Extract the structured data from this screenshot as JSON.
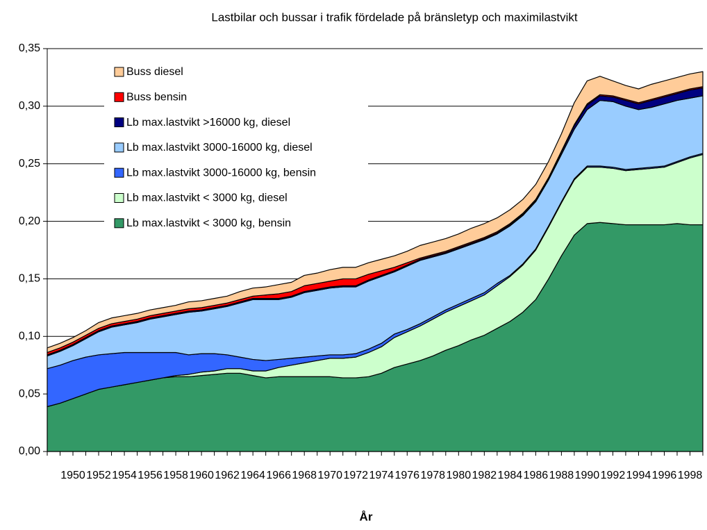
{
  "chart_data": {
    "type": "stacked-area",
    "title": "Lastbilar och bussar i trafik fördelade på bränsletyp och maximilastvikt",
    "x_label": "År",
    "categories": [
      null,
      null,
      "1950",
      null,
      "1952",
      null,
      "1954",
      null,
      "1956",
      null,
      "1958",
      null,
      "1960",
      null,
      "1962",
      null,
      "1964",
      null,
      "1966",
      null,
      "1968",
      null,
      "1970",
      null,
      "1972",
      null,
      "1974",
      null,
      "1976",
      null,
      "1978",
      null,
      "1980",
      null,
      "1982",
      null,
      "1984",
      null,
      "1986",
      null,
      "1988",
      null,
      "1990",
      null,
      "1992",
      null,
      "1994",
      null,
      "1996",
      null,
      "1998",
      null
    ],
    "ylim": [
      0,
      0.35
    ],
    "yticks": [
      {
        "value": 0,
        "label": "0,00"
      },
      {
        "value": 0.05,
        "label": "0,05"
      },
      {
        "value": 0.1,
        "label": "0,10"
      },
      {
        "value": 0.15,
        "label": "0,15"
      },
      {
        "value": 0.2,
        "label": "0,20"
      },
      {
        "value": 0.25,
        "label": "0,25"
      },
      {
        "value": 0.3,
        "label": "0,30"
      },
      {
        "value": 0.35,
        "label": "0,35"
      }
    ],
    "grid": true,
    "legend": "upper-left",
    "series": [
      {
        "name": "Lb max.lastvikt < 3000 kg, bensin",
        "color": "#339966",
        "values": [
          0.039,
          0.042,
          0.046,
          0.05,
          0.054,
          0.056,
          0.058,
          0.06,
          0.062,
          0.064,
          0.065,
          0.065,
          0.066,
          0.067,
          0.068,
          0.068,
          0.066,
          0.064,
          0.065,
          0.065,
          0.065,
          0.065,
          0.065,
          0.064,
          0.064,
          0.065,
          0.068,
          0.073,
          0.076,
          0.079,
          0.083,
          0.088,
          0.092,
          0.097,
          0.101,
          0.107,
          0.113,
          0.121,
          0.132,
          0.15,
          0.17,
          0.188,
          0.198,
          0.199,
          0.198,
          0.197,
          0.197,
          0.197,
          0.197,
          0.198,
          0.197,
          0.197
        ]
      },
      {
        "name": "Lb max.lastvikt < 3000 kg, diesel",
        "color": "#ccffcc",
        "values": [
          0,
          0,
          0,
          0,
          0,
          0,
          0,
          0,
          0,
          0,
          0.001,
          0.002,
          0.003,
          0.003,
          0.004,
          0.004,
          0.004,
          0.006,
          0.008,
          0.01,
          0.012,
          0.014,
          0.016,
          0.017,
          0.018,
          0.021,
          0.023,
          0.026,
          0.028,
          0.03,
          0.032,
          0.033,
          0.034,
          0.034,
          0.035,
          0.037,
          0.039,
          0.041,
          0.043,
          0.045,
          0.046,
          0.048,
          0.049,
          0.048,
          0.048,
          0.047,
          0.048,
          0.049,
          0.05,
          0.053,
          0.058,
          0.061
        ]
      },
      {
        "name": "Lb max.lastvikt 3000-16000 kg, bensin",
        "color": "#3366ff",
        "values": [
          0.033,
          0.033,
          0.033,
          0.032,
          0.03,
          0.029,
          0.028,
          0.026,
          0.024,
          0.022,
          0.02,
          0.017,
          0.016,
          0.015,
          0.012,
          0.01,
          0.01,
          0.009,
          0.007,
          0.006,
          0.005,
          0.004,
          0.003,
          0.003,
          0.003,
          0.003,
          0.003,
          0.003,
          0.002,
          0.002,
          0.002,
          0.002,
          0.002,
          0.002,
          0.002,
          0.002,
          0.001,
          0.001,
          0.001,
          0.001,
          0.001,
          0.001,
          0.001,
          0.001,
          0.001,
          0.001,
          0.001,
          0.001,
          0.001,
          0.001,
          0.001,
          0.001
        ]
      },
      {
        "name": "Lb max.lastvikt 3000-16000 kg, diesel",
        "color": "#99ccff",
        "values": [
          0.011,
          0.012,
          0.013,
          0.016,
          0.02,
          0.023,
          0.024,
          0.026,
          0.029,
          0.031,
          0.033,
          0.037,
          0.037,
          0.039,
          0.042,
          0.047,
          0.052,
          0.053,
          0.052,
          0.053,
          0.056,
          0.057,
          0.058,
          0.059,
          0.058,
          0.059,
          0.058,
          0.054,
          0.055,
          0.055,
          0.052,
          0.049,
          0.048,
          0.047,
          0.046,
          0.043,
          0.043,
          0.042,
          0.041,
          0.04,
          0.041,
          0.043,
          0.049,
          0.057,
          0.057,
          0.055,
          0.051,
          0.052,
          0.054,
          0.053,
          0.051,
          0.05
        ]
      },
      {
        "name": "Lb max.lastvikt >16000 kg, diesel",
        "color": "#000080",
        "values": [
          0.001,
          0.001,
          0.001,
          0.001,
          0.001,
          0.001,
          0.001,
          0.001,
          0.001,
          0.001,
          0.001,
          0.001,
          0.001,
          0.001,
          0.001,
          0.001,
          0.001,
          0.001,
          0.001,
          0.001,
          0.001,
          0.001,
          0.001,
          0.001,
          0.001,
          0.001,
          0.001,
          0.001,
          0.001,
          0.001,
          0.001,
          0.001,
          0.001,
          0.001,
          0.001,
          0.001,
          0.001,
          0.001,
          0.001,
          0.001,
          0.002,
          0.003,
          0.004,
          0.004,
          0.004,
          0.005,
          0.005,
          0.006,
          0.006,
          0.006,
          0.007,
          0.007
        ]
      },
      {
        "name": "Buss bensin",
        "color": "#ff0000",
        "values": [
          0.002,
          0.002,
          0.002,
          0.002,
          0.002,
          0.002,
          0.002,
          0.002,
          0.002,
          0.002,
          0.002,
          0.002,
          0.002,
          0.002,
          0.002,
          0.002,
          0.002,
          0.003,
          0.004,
          0.004,
          0.005,
          0.005,
          0.005,
          0.006,
          0.006,
          0.005,
          0.004,
          0.003,
          0.002,
          0.001,
          0.001,
          0.001,
          0.001,
          0.001,
          0.001,
          0.001,
          0.001,
          0.001,
          0.001,
          0.001,
          0.001,
          0.001,
          0.001,
          0.001,
          0.001,
          0.001,
          0.001,
          0.001,
          0.001,
          0.001,
          0.001,
          0.001
        ]
      },
      {
        "name": "Buss diesel",
        "color": "#ffcc99",
        "values": [
          0.004,
          0.004,
          0.004,
          0.004,
          0.005,
          0.005,
          0.005,
          0.005,
          0.005,
          0.005,
          0.005,
          0.006,
          0.006,
          0.006,
          0.006,
          0.007,
          0.007,
          0.007,
          0.008,
          0.008,
          0.009,
          0.009,
          0.01,
          0.01,
          0.01,
          0.01,
          0.01,
          0.01,
          0.01,
          0.011,
          0.011,
          0.011,
          0.011,
          0.012,
          0.012,
          0.012,
          0.012,
          0.012,
          0.013,
          0.014,
          0.015,
          0.019,
          0.02,
          0.016,
          0.013,
          0.012,
          0.012,
          0.013,
          0.013,
          0.013,
          0.013,
          0.013
        ]
      }
    ]
  }
}
